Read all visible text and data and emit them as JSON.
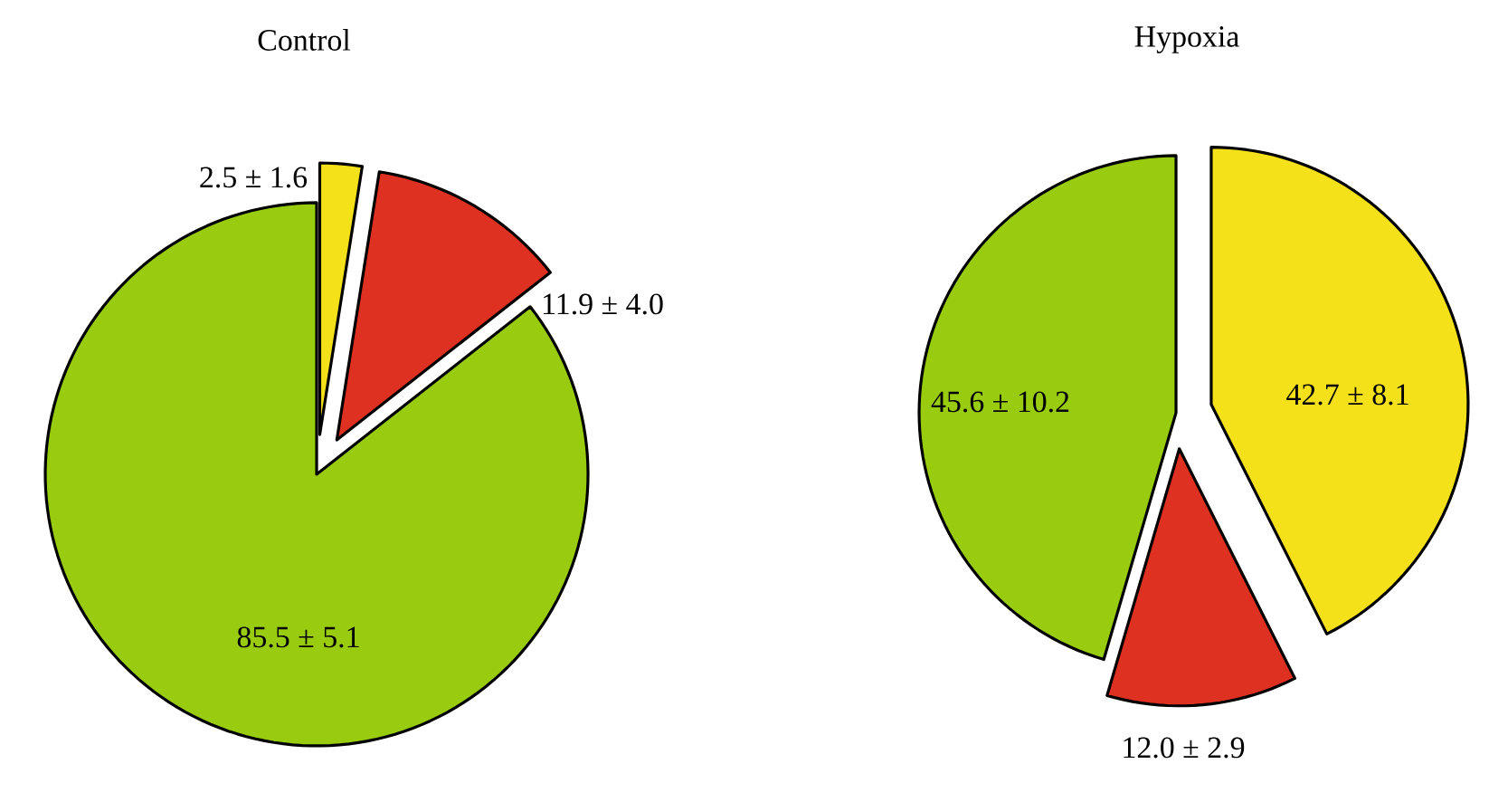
{
  "chart_data": [
    {
      "type": "pie",
      "title": "Control",
      "categories": [
        null,
        null,
        null
      ],
      "values": [
        2.5,
        11.9,
        85.5
      ],
      "value_labels": [
        "2.5 ± 1.6",
        "11.9 ± 4.0",
        "85.5 ± 5.1"
      ],
      "colors": [
        "#f5e11a",
        "#de3121",
        "#99cc0f"
      ]
    },
    {
      "type": "pie",
      "title": "Hypoxia",
      "categories": [
        null,
        null,
        null
      ],
      "values": [
        42.7,
        12.0,
        45.6
      ],
      "value_labels": [
        "42.7 ± 8.1",
        "12.0 ± 2.9",
        "45.6 ± 10.2"
      ],
      "colors": [
        "#f5e11a",
        "#de3121",
        "#99cc0f"
      ]
    }
  ]
}
